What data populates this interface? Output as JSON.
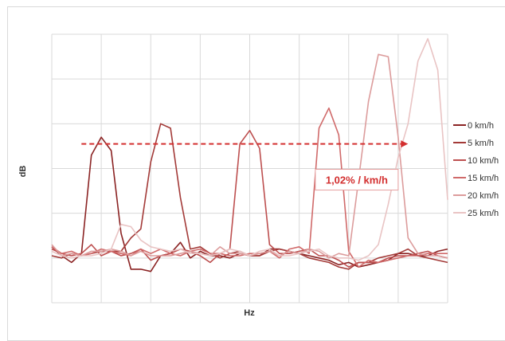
{
  "chart_data": {
    "type": "line",
    "title": "",
    "xlabel": "Hz",
    "ylabel": "dB",
    "grid": true,
    "legend_position": "right",
    "x": [
      0,
      1,
      2,
      3,
      4,
      5,
      6,
      7,
      8,
      9,
      10,
      11,
      12,
      13,
      14,
      15,
      16,
      17,
      18,
      19,
      20,
      21,
      22,
      23,
      24,
      25,
      26,
      27,
      28,
      29,
      30,
      31,
      32,
      33,
      34,
      35,
      36,
      37,
      38,
      39,
      40
    ],
    "xlim": [
      0,
      40
    ],
    "ylim": [
      -9,
      3
    ],
    "series": [
      {
        "name": "0 km/h",
        "color": "#8b2323",
        "values": [
          -6.5,
          -6.9,
          -7.2,
          -6.8,
          -2.4,
          -1.6,
          -2.2,
          -5.9,
          -7.5,
          -7.5,
          -7.6,
          -6.9,
          -6.8,
          -6.3,
          -7.0,
          -6.7,
          -6.9,
          -6.9,
          -7.0,
          -6.8,
          -6.9,
          -6.9,
          -6.6,
          -6.6,
          -6.7,
          -6.8,
          -6.9,
          -7.0,
          -7.1,
          -7.3,
          -7.2,
          -7.4,
          -7.3,
          -7.2,
          -7.1,
          -6.8,
          -6.8,
          -6.9,
          -6.9,
          -6.7,
          -6.6
        ]
      },
      {
        "name": "5 km/h",
        "color": "#a33a38",
        "values": [
          -6.9,
          -7.0,
          -6.8,
          -6.9,
          -6.8,
          -6.7,
          -6.7,
          -6.7,
          -6.1,
          -5.7,
          -2.7,
          -1.0,
          -1.2,
          -4.3,
          -6.6,
          -6.5,
          -6.8,
          -7.0,
          -6.8,
          -6.7,
          -6.9,
          -6.9,
          -6.7,
          -6.6,
          -6.7,
          -6.8,
          -7.0,
          -7.1,
          -7.2,
          -7.4,
          -7.5,
          -7.2,
          -7.2,
          -7.0,
          -6.9,
          -6.8,
          -6.6,
          -6.9,
          -7.0,
          -7.1,
          -7.2
        ]
      },
      {
        "name": "10 km/h",
        "color": "#bd4f4f",
        "values": [
          -6.6,
          -6.8,
          -6.9,
          -6.8,
          -6.4,
          -6.9,
          -6.7,
          -6.9,
          -6.8,
          -6.6,
          -7.1,
          -6.9,
          -6.8,
          -6.6,
          -6.7,
          -6.9,
          -7.2,
          -6.8,
          -6.6,
          -1.9,
          -1.3,
          -2.1,
          -6.4,
          -6.8,
          -6.8,
          -6.7,
          -6.6,
          -6.9,
          -6.9,
          -7.1,
          -7.4,
          -7.2,
          -7.2,
          -7.2,
          -7.0,
          -6.9,
          -6.9,
          -6.8,
          -6.7,
          -6.9,
          -7.0
        ]
      },
      {
        "name": "15 km/h",
        "color": "#d06a6a",
        "values": [
          -6.5,
          -6.8,
          -6.7,
          -6.9,
          -6.8,
          -6.6,
          -6.7,
          -6.8,
          -6.9,
          -6.6,
          -6.8,
          -6.6,
          -6.8,
          -6.9,
          -6.7,
          -6.6,
          -6.8,
          -6.8,
          -6.9,
          -6.9,
          -6.8,
          -6.8,
          -6.7,
          -7.0,
          -6.6,
          -6.5,
          -6.8,
          -1.2,
          -0.3,
          -1.5,
          -6.7,
          -7.4,
          -7.1,
          -7.2,
          -7.1,
          -7.0,
          -6.9,
          -6.9,
          -6.8,
          -6.8,
          -6.8
        ]
      },
      {
        "name": "20 km/h",
        "color": "#dc9c9c",
        "values": [
          -6.4,
          -6.9,
          -6.8,
          -6.9,
          -6.7,
          -6.7,
          -6.6,
          -6.7,
          -6.9,
          -6.7,
          -6.9,
          -6.9,
          -6.9,
          -6.8,
          -6.7,
          -6.8,
          -6.9,
          -6.5,
          -6.8,
          -6.8,
          -6.9,
          -6.8,
          -6.7,
          -6.9,
          -6.7,
          -6.8,
          -6.6,
          -6.7,
          -7.0,
          -6.8,
          -6.9,
          -3.5,
          0.0,
          2.1,
          2.0,
          -1.6,
          -6.1,
          -6.8,
          -6.9,
          -6.9,
          -7.0
        ]
      },
      {
        "name": "25 km/h",
        "color": "#e9c4c4",
        "values": [
          -6.7,
          -6.9,
          -7.0,
          -6.9,
          -6.9,
          -6.8,
          -6.6,
          -5.5,
          -5.6,
          -6.2,
          -6.5,
          -6.6,
          -6.7,
          -6.6,
          -6.8,
          -6.8,
          -6.9,
          -6.8,
          -6.6,
          -6.7,
          -6.9,
          -6.7,
          -6.6,
          -6.9,
          -6.9,
          -6.8,
          -6.7,
          -6.6,
          -6.9,
          -7.0,
          -7.0,
          -7.1,
          -6.9,
          -6.4,
          -4.6,
          -2.5,
          -1.0,
          1.8,
          2.8,
          1.4,
          -4.4
        ]
      }
    ],
    "annotation": {
      "text": "1,02% / km/h",
      "color": "#d32f2f",
      "arrow_from": [
        3,
        -1.9
      ],
      "arrow_to": [
        36,
        -1.9
      ],
      "label_at": [
        35,
        -3.5
      ]
    }
  }
}
